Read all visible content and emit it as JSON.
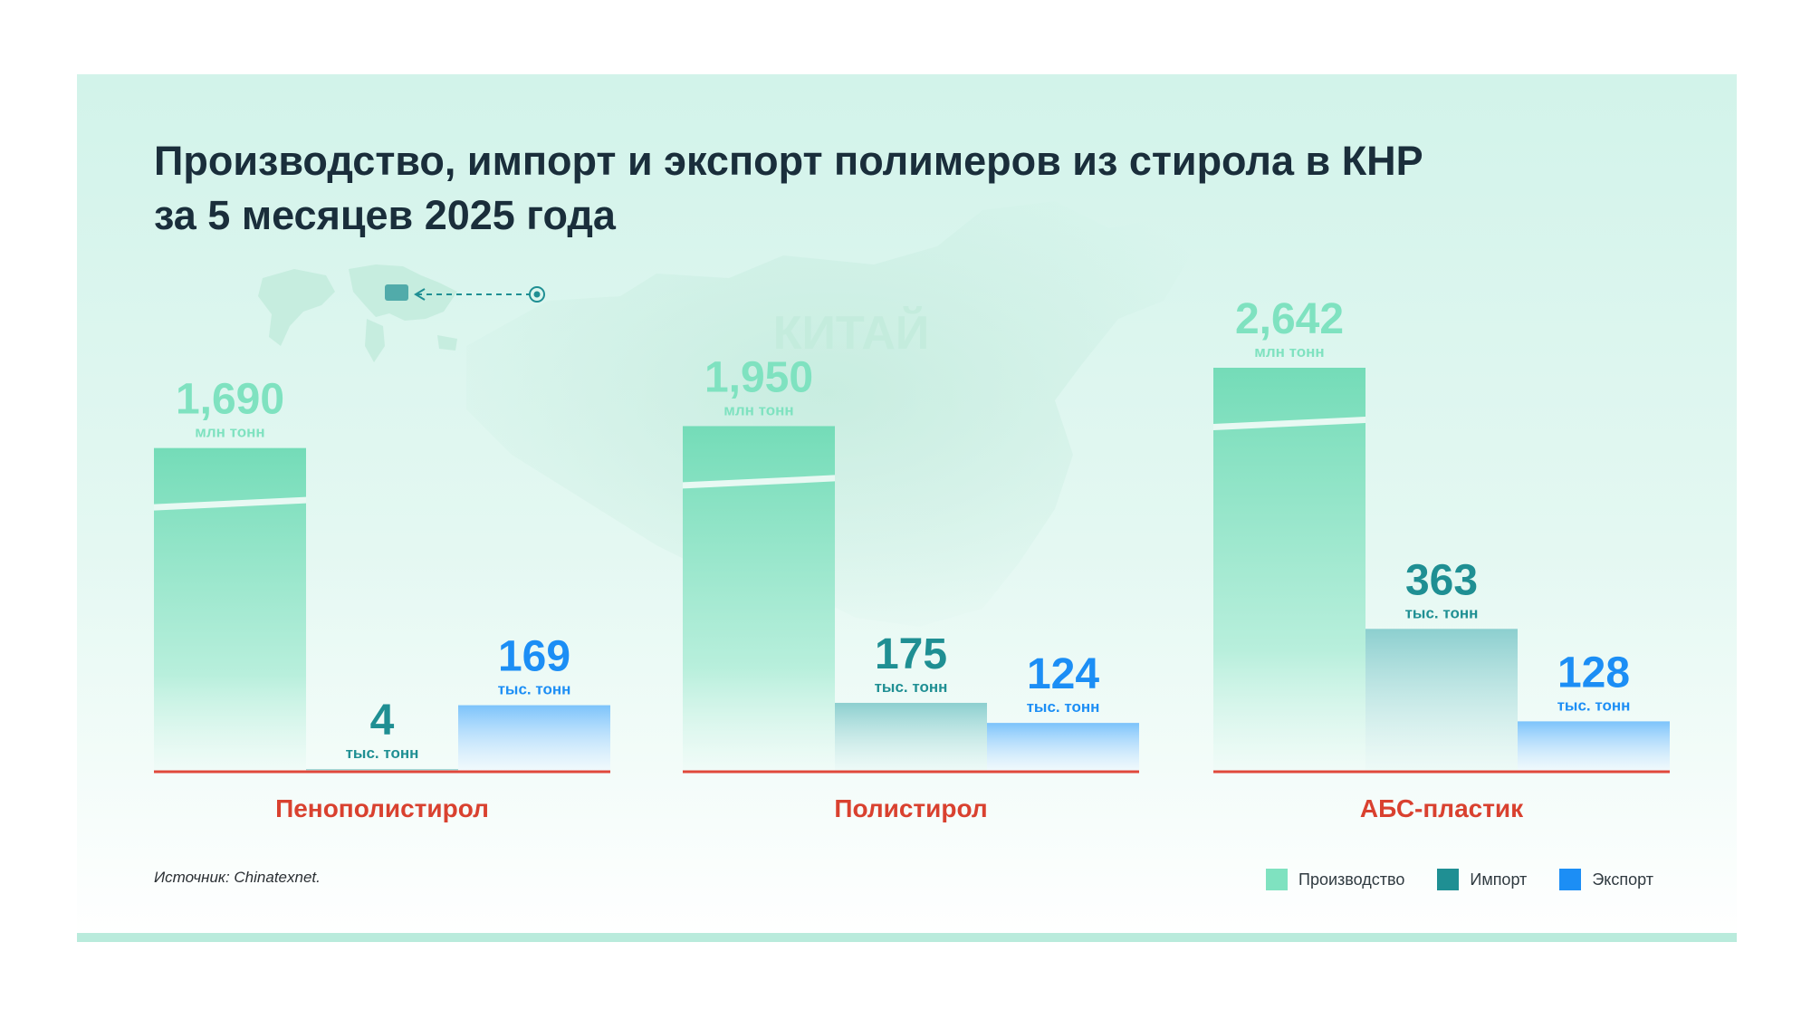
{
  "title": {
    "line1": "Производство, импорт и экспорт полимеров из стирола в КНР",
    "line2": "за 5 месяцев 2025 года"
  },
  "map_label": "КИТАЙ",
  "source": "Источник: Chinatexnet.",
  "colors": {
    "production": "#7fe2c0",
    "import": "#1f8f93",
    "export": "#1c8ef5",
    "baseline": "#e0483b",
    "category_label": "#d9412f"
  },
  "legend": [
    {
      "label": "Производство",
      "color": "#7fe2c0"
    },
    {
      "label": "Импорт",
      "color": "#1f8f93"
    },
    {
      "label": "Экспорт",
      "color": "#1c8ef5"
    }
  ],
  "chart_data": {
    "type": "bar",
    "categories": [
      "Пенополистирол",
      "Полистирол",
      "АБС-пластик"
    ],
    "series": [
      {
        "name": "Производство",
        "values": [
          1690,
          1950,
          2642
        ],
        "value_labels": [
          "1,690",
          "1,950",
          "2,642"
        ],
        "unit": "млн тонн",
        "axis_break": true
      },
      {
        "name": "Импорт",
        "values": [
          4,
          175,
          363
        ],
        "value_labels": [
          "4",
          "175",
          "363"
        ],
        "unit": "тыс. тонн"
      },
      {
        "name": "Экспорт",
        "values": [
          169,
          124,
          128
        ],
        "value_labels": [
          "169",
          "124",
          "128"
        ],
        "unit": "тыс. тонн"
      }
    ],
    "xlabel": "",
    "ylabel": "",
    "grid": false,
    "legend_position": "bottom-right"
  }
}
